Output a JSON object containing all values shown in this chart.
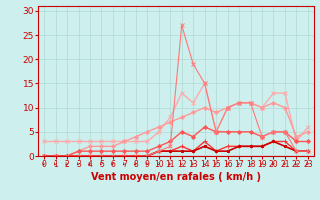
{
  "x": [
    0,
    1,
    2,
    3,
    4,
    5,
    6,
    7,
    8,
    9,
    10,
    11,
    12,
    13,
    14,
    15,
    16,
    17,
    18,
    19,
    20,
    21,
    22,
    23
  ],
  "series": [
    {
      "color": "#ffaaaa",
      "lw": 1.0,
      "marker": "x",
      "markersize": 3,
      "y": [
        3,
        3,
        3,
        3,
        3,
        3,
        3,
        3,
        3,
        3,
        5,
        8,
        13,
        11,
        15,
        5,
        10,
        11,
        11,
        10,
        13,
        13,
        3,
        6
      ]
    },
    {
      "color": "#ff9999",
      "lw": 1.0,
      "marker": "D",
      "markersize": 2,
      "y": [
        0,
        0,
        0,
        1,
        2,
        2,
        2,
        3,
        4,
        5,
        6,
        7,
        8,
        9,
        10,
        9,
        10,
        11,
        11,
        10,
        11,
        10,
        4,
        5
      ]
    },
    {
      "color": "#ff5555",
      "lw": 1.0,
      "marker": "D",
      "markersize": 2,
      "y": [
        0,
        0,
        0,
        1,
        1,
        1,
        1,
        1,
        1,
        1,
        2,
        3,
        5,
        4,
        6,
        5,
        5,
        5,
        5,
        4,
        5,
        5,
        3,
        3
      ]
    },
    {
      "color": "#ff3333",
      "lw": 1.0,
      "marker": "+",
      "markersize": 3,
      "y": [
        0,
        0,
        0,
        0,
        0,
        0,
        0,
        0,
        0,
        0,
        1,
        1,
        2,
        1,
        3,
        1,
        2,
        2,
        2,
        2,
        3,
        3,
        1,
        1
      ]
    },
    {
      "color": "#cc0000",
      "lw": 1.2,
      "marker": "s",
      "markersize": 2,
      "y": [
        0,
        0,
        0,
        0,
        0,
        0,
        0,
        0,
        0,
        0,
        1,
        1,
        1,
        1,
        2,
        1,
        1,
        2,
        2,
        2,
        3,
        2,
        1,
        1
      ]
    },
    {
      "color": "#ff7777",
      "lw": 0.8,
      "marker": "x",
      "markersize": 3,
      "y": [
        0,
        0,
        0,
        0,
        0,
        0,
        0,
        0,
        0,
        0,
        1,
        2,
        27,
        19,
        15,
        5,
        10,
        11,
        11,
        4,
        5,
        5,
        1,
        1
      ]
    }
  ],
  "xlabel": "Vent moyen/en rafales ( km/h )",
  "ylim": [
    0,
    31
  ],
  "xlim": [
    -0.5,
    23.5
  ],
  "yticks": [
    0,
    5,
    10,
    15,
    20,
    25,
    30
  ],
  "xticks": [
    0,
    1,
    2,
    3,
    4,
    5,
    6,
    7,
    8,
    9,
    10,
    11,
    12,
    13,
    14,
    15,
    16,
    17,
    18,
    19,
    20,
    21,
    22,
    23
  ],
  "bg_color": "#cdf0ee",
  "grid_color": "#b0d8d0",
  "axis_color": "#cc0000",
  "xlabel_color": "#cc0000",
  "tick_color": "#cc0000",
  "xlabel_fontsize": 7.0,
  "ytick_fontsize": 6.5,
  "xtick_fontsize": 5.5
}
